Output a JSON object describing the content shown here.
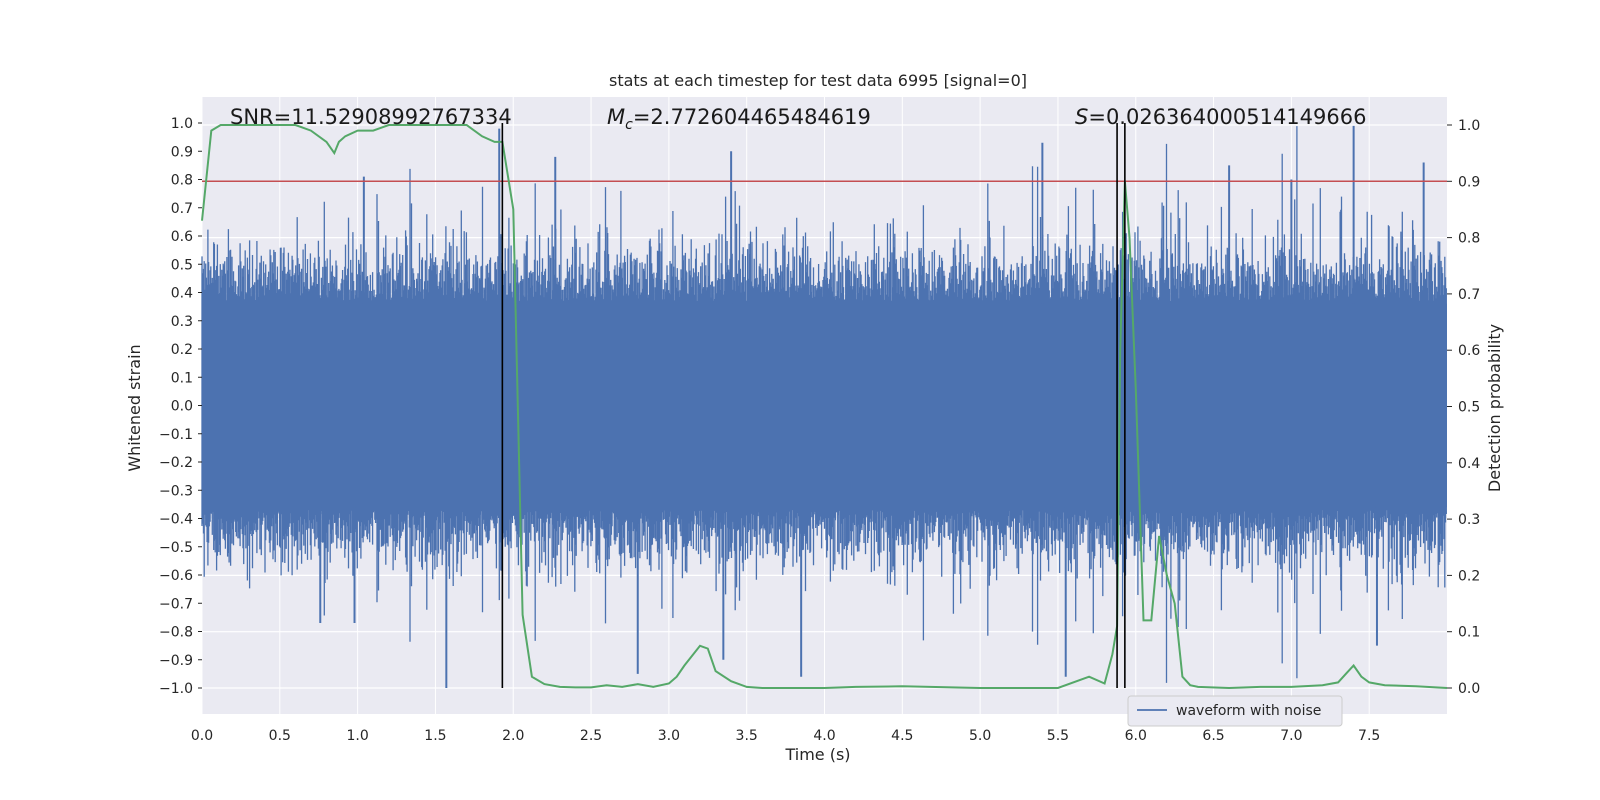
{
  "chart_data": {
    "type": "line",
    "title": "stats at each timestep for test data 6995 [signal=0]",
    "xlabel": "Time (s)",
    "ylabel_left": "Whitened strain",
    "ylabel_right": "Detection probability",
    "xlim": [
      0.0,
      8.0
    ],
    "ylim_left": [
      -1.1,
      1.1
    ],
    "ylim_right": [
      -0.05,
      1.05
    ],
    "x_ticks": [
      "0.0",
      "0.5",
      "1.0",
      "1.5",
      "2.0",
      "2.5",
      "3.0",
      "3.5",
      "4.0",
      "4.5",
      "5.0",
      "5.5",
      "6.0",
      "6.5",
      "7.0",
      "7.5"
    ],
    "y_left_ticks": [
      "1.0",
      "0.9",
      "0.8",
      "0.7",
      "0.6",
      "0.5",
      "0.4",
      "0.3",
      "0.2",
      "0.1",
      "0.0",
      "−0.1",
      "−0.2",
      "−0.3",
      "−0.4",
      "−0.5",
      "−0.6",
      "−0.7",
      "−0.8",
      "−0.9",
      "−1.0"
    ],
    "y_right_ticks": [
      "1.0",
      "0.9",
      "0.8",
      "0.7",
      "0.6",
      "0.5",
      "0.4",
      "0.3",
      "0.2",
      "0.1",
      "0.0"
    ],
    "annotations": {
      "snr": "SNR=11.52908992767334",
      "mc_symbol": "M",
      "mc_sub": "c",
      "mc_value": "=2.772604465484619",
      "s_symbol": "S",
      "s_value": "=0.026364000514149666"
    },
    "legend": [
      "waveform with noise"
    ],
    "threshold": {
      "axis": "right",
      "value": 0.9,
      "color": "#c44e52"
    },
    "vertical_lines": [
      1.93,
      5.88,
      5.93
    ],
    "colors": {
      "waveform": "#4c72b0",
      "probability": "#55a868",
      "threshold": "#c44e52",
      "vlines": "#000000"
    },
    "waveform_peaks": [
      {
        "x": 1.57,
        "y": -1.0
      },
      {
        "x": 1.91,
        "y": 0.98
      },
      {
        "x": 2.27,
        "y": 0.88
      },
      {
        "x": 3.4,
        "y": 0.9
      },
      {
        "x": 3.85,
        "y": -0.96
      },
      {
        "x": 5.4,
        "y": 0.93
      },
      {
        "x": 7.4,
        "y": 0.99
      },
      {
        "x": 7.85,
        "y": 0.86
      },
      {
        "x": 7.55,
        "y": -0.85
      },
      {
        "x": 2.8,
        "y": -0.95
      },
      {
        "x": 3.35,
        "y": -0.9
      },
      {
        "x": 1.04,
        "y": 0.81
      },
      {
        "x": 0.98,
        "y": -0.77
      },
      {
        "x": 0.76,
        "y": -0.77
      },
      {
        "x": 5.55,
        "y": -0.96
      },
      {
        "x": 6.6,
        "y": 0.85
      },
      {
        "x": 7.0,
        "y": 0.8
      }
    ],
    "probability_series": {
      "x": [
        0.0,
        0.06,
        0.12,
        0.2,
        0.3,
        0.4,
        0.5,
        0.6,
        0.7,
        0.8,
        0.85,
        0.88,
        0.92,
        1.0,
        1.1,
        1.2,
        1.3,
        1.4,
        1.5,
        1.6,
        1.7,
        1.8,
        1.88,
        1.93,
        2.0,
        2.06,
        2.12,
        2.2,
        2.3,
        2.4,
        2.5,
        2.6,
        2.7,
        2.8,
        2.9,
        3.0,
        3.05,
        3.1,
        3.2,
        3.25,
        3.3,
        3.4,
        3.5,
        3.6,
        3.8,
        4.0,
        4.2,
        4.5,
        5.0,
        5.5,
        5.7,
        5.8,
        5.85,
        5.88,
        5.9,
        5.93,
        5.96,
        6.0,
        6.05,
        6.1,
        6.15,
        6.2,
        6.25,
        6.3,
        6.35,
        6.4,
        6.6,
        6.8,
        7.0,
        7.2,
        7.3,
        7.35,
        7.4,
        7.45,
        7.5,
        7.6,
        7.8,
        8.0
      ],
      "y": [
        0.83,
        0.99,
        1.0,
        1.0,
        1.0,
        1.0,
        1.0,
        1.0,
        0.99,
        0.97,
        0.95,
        0.97,
        0.98,
        0.99,
        0.99,
        1.0,
        1.0,
        1.0,
        1.0,
        1.0,
        1.0,
        0.98,
        0.97,
        0.97,
        0.85,
        0.13,
        0.02,
        0.007,
        0.002,
        0.001,
        0.001,
        0.005,
        0.002,
        0.007,
        0.002,
        0.008,
        0.02,
        0.04,
        0.075,
        0.07,
        0.03,
        0.012,
        0.002,
        0.0,
        0.0,
        0.0,
        0.002,
        0.003,
        0.0,
        0.0,
        0.02,
        0.008,
        0.06,
        0.11,
        0.6,
        0.9,
        0.8,
        0.53,
        0.12,
        0.12,
        0.27,
        0.2,
        0.15,
        0.02,
        0.005,
        0.002,
        0.0,
        0.002,
        0.002,
        0.005,
        0.01,
        0.025,
        0.04,
        0.02,
        0.01,
        0.005,
        0.003,
        0.0
      ]
    }
  }
}
